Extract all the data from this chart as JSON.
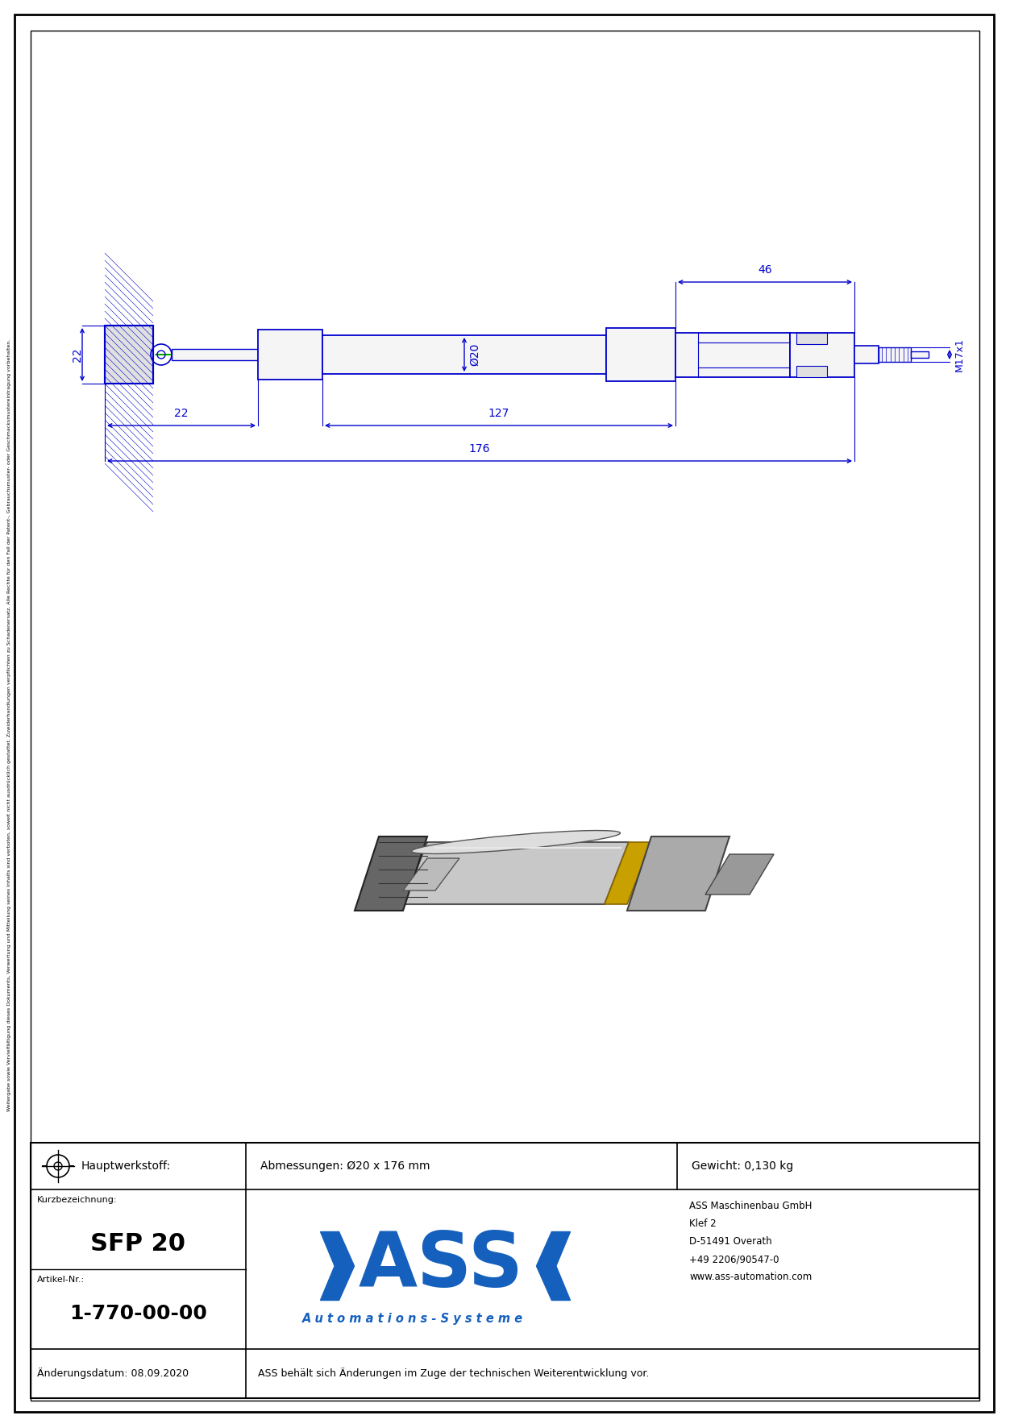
{
  "bg_color": "#ffffff",
  "border_color": "#000000",
  "blue": "#0000cc",
  "green": "#00aa00",
  "logo_blue": "#1560bd",
  "title_text": "SFP 20",
  "article_label": "Artikel-Nr.:",
  "article_number": "1-770-00-00",
  "kurz_label": "Kurzbezeichnung:",
  "hauptwerk_label": "Hauptwerkstoff:",
  "abmessungen_label": "Abmessungen: Ø20 x 176 mm",
  "gewicht_label": "Gewicht: 0,130 kg",
  "aenderung_label": "Änderungsdatum: 08.09.2020",
  "aenderung_note": "ASS behält sich Änderungen im Zuge der technischen Weiterentwicklung vor.",
  "company_name": "ASS Maschinenbau GmbH",
  "company_street": "Klef 2",
  "company_city": "D-51491 Overath",
  "company_phone": "+49 2206/90547-0",
  "company_web": "www.ass-automation.com",
  "automations_text": "A u t o m a t i o n s - S y s t e m e",
  "side_text": "Weitergabe sowie Vervielfältigung dieses Dokuments, Verwertung und Mitteilung seines Inhalts sind verboten, soweit nicht ausdrücklich gestattet. Zuwiderhandlungen verpflichten zu Schadenersatz. Alle Rechte für den Fall der Patent-, Gebrauchsmuster- oder Geschmacksmustereintragung vorbehalten.",
  "dim_46": "46",
  "dim_22_top": "22",
  "dim_22_bot": "22",
  "dim_127": "127",
  "dim_176": "176",
  "dim_o20": "Ø20",
  "dim_m17x1": "M17x1"
}
